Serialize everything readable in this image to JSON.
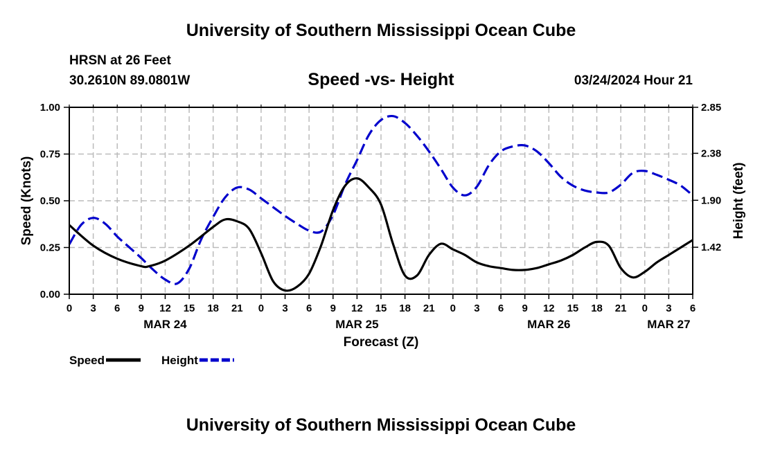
{
  "header": {
    "title": "University of Southern Mississippi Ocean Cube",
    "station": "HRSN at 26 Feet",
    "coordinates": "30.2610N  89.0801W",
    "subtitle": "Speed -vs- Height",
    "datetime": "03/24/2024 Hour 21"
  },
  "footer": {
    "title": "University of Southern Mississippi Ocean Cube"
  },
  "chart_data": {
    "type": "line",
    "title": "Speed -vs- Height",
    "xlabel": "Forecast (Z)",
    "ylabel": "Speed (Knots)",
    "y2label": "Height (feet)",
    "x_unit": "hours from Mar 24 00Z",
    "xlim": [
      0,
      78
    ],
    "ylim": [
      0,
      1
    ],
    "y2lim": [
      0.94,
      2.85
    ],
    "grid": true,
    "x_ticks": [
      {
        "x": 0,
        "label": "0"
      },
      {
        "x": 3,
        "label": "3"
      },
      {
        "x": 6,
        "label": "6"
      },
      {
        "x": 9,
        "label": "9"
      },
      {
        "x": 12,
        "label": "12"
      },
      {
        "x": 15,
        "label": "15"
      },
      {
        "x": 18,
        "label": "18"
      },
      {
        "x": 21,
        "label": "21"
      },
      {
        "x": 24,
        "label": "0"
      },
      {
        "x": 27,
        "label": "3"
      },
      {
        "x": 30,
        "label": "6"
      },
      {
        "x": 33,
        "label": "9"
      },
      {
        "x": 36,
        "label": "12"
      },
      {
        "x": 39,
        "label": "15"
      },
      {
        "x": 42,
        "label": "18"
      },
      {
        "x": 45,
        "label": "21"
      },
      {
        "x": 48,
        "label": "0"
      },
      {
        "x": 51,
        "label": "3"
      },
      {
        "x": 54,
        "label": "6"
      },
      {
        "x": 57,
        "label": "9"
      },
      {
        "x": 60,
        "label": "12"
      },
      {
        "x": 63,
        "label": "15"
      },
      {
        "x": 66,
        "label": "18"
      },
      {
        "x": 69,
        "label": "21"
      },
      {
        "x": 72,
        "label": "0"
      },
      {
        "x": 75,
        "label": "3"
      },
      {
        "x": 78,
        "label": "6"
      }
    ],
    "date_labels": [
      {
        "x": 12,
        "label": "MAR 24"
      },
      {
        "x": 36,
        "label": "MAR 25"
      },
      {
        "x": 60,
        "label": "MAR 26"
      },
      {
        "x": 75,
        "label": "MAR 27"
      }
    ],
    "y_ticks": [
      {
        "y": 0.0,
        "label": "0.00"
      },
      {
        "y": 0.25,
        "label": "0.25"
      },
      {
        "y": 0.5,
        "label": "0.50"
      },
      {
        "y": 0.75,
        "label": "0.75"
      },
      {
        "y": 1.0,
        "label": "1.00"
      }
    ],
    "y2_ticks": [
      {
        "y": 1.42,
        "label": "1.42"
      },
      {
        "y": 1.9,
        "label": "1.90"
      },
      {
        "y": 2.38,
        "label": "2.38"
      },
      {
        "y": 2.85,
        "label": "2.85"
      }
    ],
    "series": [
      {
        "name": "Speed",
        "axis": "left",
        "color": "#000000",
        "dash": "solid",
        "x": [
          0,
          3,
          6,
          9,
          10,
          12,
          15,
          18,
          19.5,
          21,
          22.5,
          24,
          25.5,
          27,
          28.5,
          30,
          31.5,
          33,
          34.5,
          36,
          37.5,
          39,
          40.5,
          42,
          43.5,
          45,
          46.5,
          48,
          49.5,
          51,
          52.5,
          54,
          55.5,
          57,
          58.5,
          60,
          61.5,
          63,
          64.5,
          66,
          67.5,
          69,
          70.5,
          72,
          73.5,
          75,
          76.5,
          78
        ],
        "values": [
          0.37,
          0.26,
          0.19,
          0.15,
          0.15,
          0.18,
          0.26,
          0.36,
          0.4,
          0.39,
          0.35,
          0.22,
          0.07,
          0.02,
          0.04,
          0.11,
          0.26,
          0.45,
          0.58,
          0.62,
          0.57,
          0.48,
          0.27,
          0.1,
          0.1,
          0.21,
          0.27,
          0.24,
          0.21,
          0.17,
          0.15,
          0.14,
          0.13,
          0.13,
          0.14,
          0.16,
          0.18,
          0.21,
          0.25,
          0.28,
          0.26,
          0.14,
          0.09,
          0.12,
          0.17,
          0.21,
          0.25,
          0.29
        ]
      },
      {
        "name": "Height",
        "axis": "right",
        "color": "#0000CC",
        "dash": "dashed",
        "x": [
          0,
          1.5,
          3,
          4.5,
          6,
          7.5,
          9,
          10.5,
          12,
          13.5,
          15,
          16.5,
          18,
          19.5,
          21,
          22.5,
          24,
          25.5,
          27,
          28.5,
          30,
          31.5,
          33,
          34.5,
          36,
          37.5,
          39,
          40.5,
          42,
          43.5,
          45,
          46.5,
          48,
          49.5,
          51,
          52.5,
          54,
          55.5,
          57,
          58.5,
          60,
          61.5,
          63,
          64.5,
          66,
          67.5,
          69,
          70.5,
          72,
          73.5,
          75,
          76.5,
          78
        ],
        "values": [
          1.45,
          1.65,
          1.72,
          1.66,
          1.53,
          1.42,
          1.31,
          1.19,
          1.09,
          1.05,
          1.2,
          1.5,
          1.73,
          1.93,
          2.03,
          2.01,
          1.92,
          1.83,
          1.74,
          1.66,
          1.59,
          1.58,
          1.75,
          2.06,
          2.31,
          2.57,
          2.72,
          2.76,
          2.69,
          2.56,
          2.4,
          2.22,
          2.03,
          1.95,
          2.04,
          2.26,
          2.4,
          2.45,
          2.46,
          2.4,
          2.28,
          2.14,
          2.05,
          2.0,
          1.98,
          1.98,
          2.06,
          2.18,
          2.2,
          2.16,
          2.11,
          2.05,
          1.95
        ]
      }
    ],
    "legend": [
      {
        "label": "Speed",
        "color": "#000000",
        "dash": "solid"
      },
      {
        "label": "Height",
        "color": "#0000CC",
        "dash": "dashed"
      }
    ],
    "legend_position": "bottom-left"
  }
}
